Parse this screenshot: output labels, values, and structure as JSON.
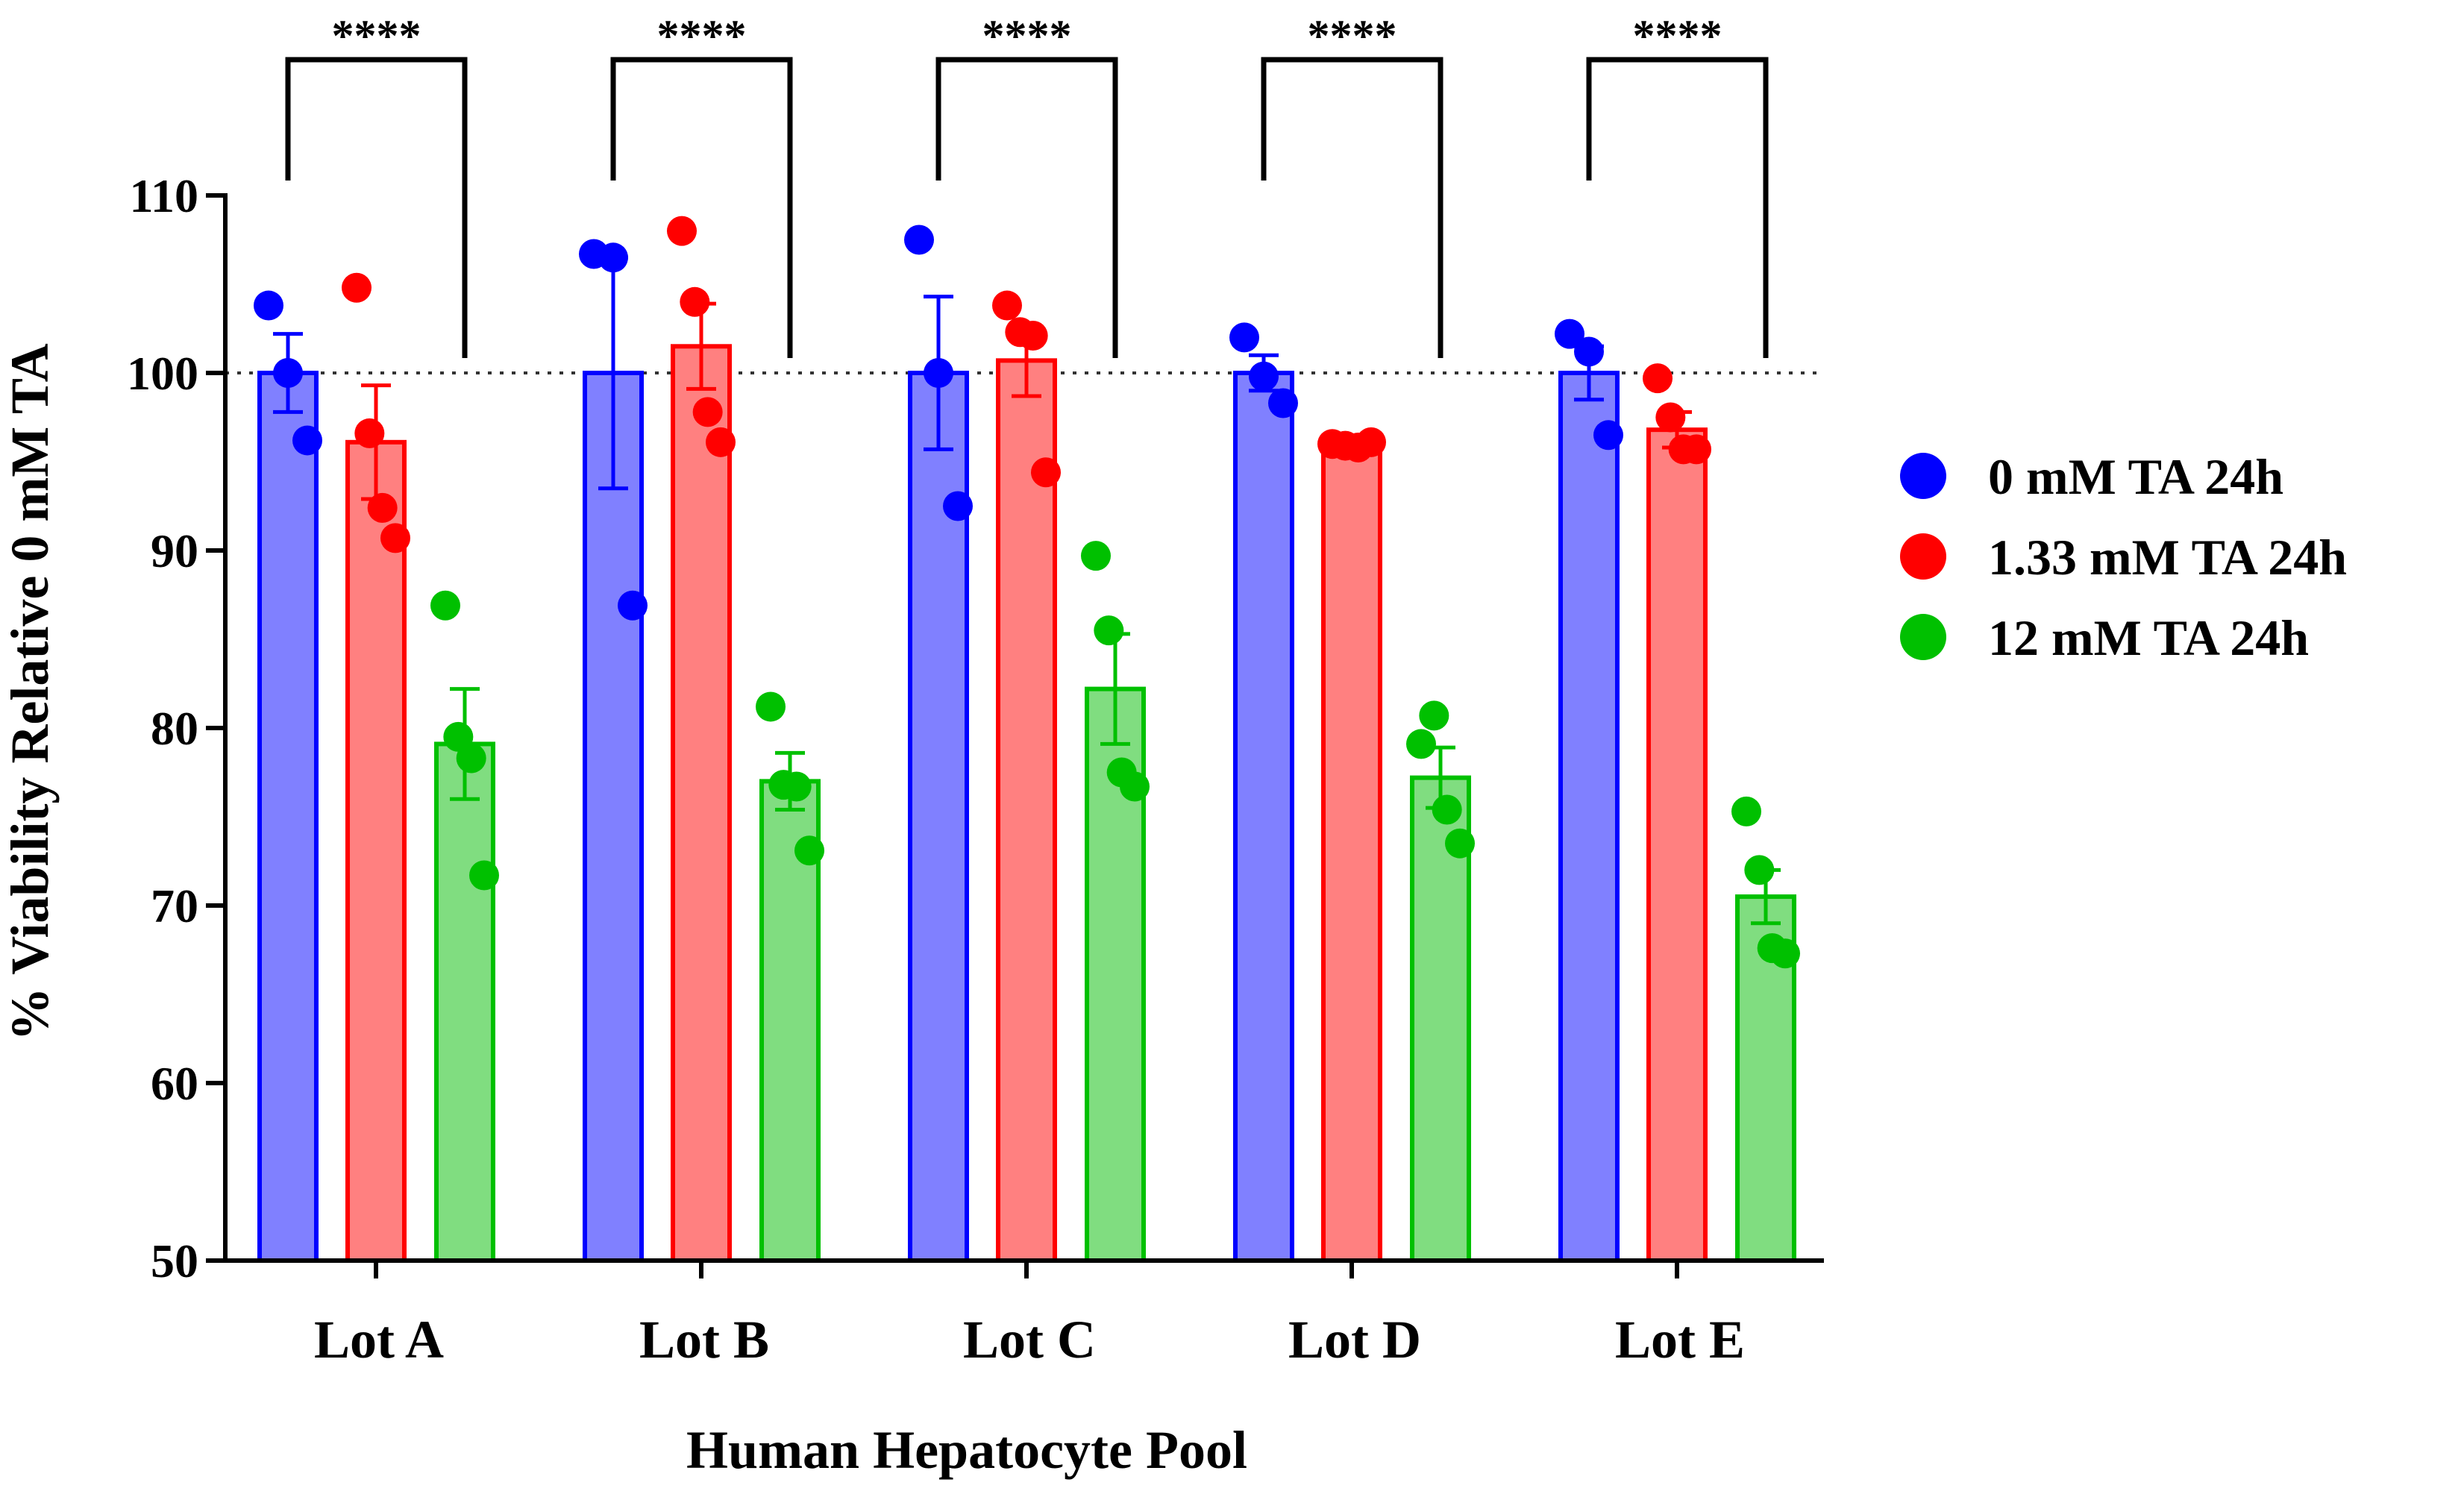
{
  "chart_data": {
    "type": "bar",
    "title": "",
    "xlabel": "Human Hepatocyte Pool",
    "ylabel": "% Viability Relative 0 mM TA",
    "ylim": [
      50,
      110
    ],
    "yticks": [
      50,
      60,
      70,
      80,
      90,
      100,
      110
    ],
    "reference_line": 100,
    "categories": [
      "Lot A",
      "Lot B",
      "Lot C",
      "Lot D",
      "Lot E"
    ],
    "series": [
      {
        "name": "0 mM TA 24h",
        "color": "#0000FF",
        "fill": "#8080FF",
        "values": [
          100,
          100,
          100,
          100,
          100
        ],
        "errors": [
          2.2,
          6.5,
          4.3,
          1.0,
          1.5
        ],
        "points": [
          [
            103.8,
            100.0,
            96.2
          ],
          [
            106.7,
            106.5,
            86.9
          ],
          [
            107.5,
            100.0,
            92.5
          ],
          [
            102.0,
            99.8,
            98.3
          ],
          [
            102.2,
            101.2,
            96.5
          ]
        ]
      },
      {
        "name": "1.33 mM TA 24h",
        "color": "#FF0000",
        "fill": "#FF8080",
        "values": [
          96.1,
          101.5,
          100.7,
          95.9,
          96.8
        ],
        "errors": [
          3.2,
          2.4,
          2.0,
          0.3,
          1.0
        ],
        "points": [
          [
            104.8,
            96.6,
            92.4,
            90.7
          ],
          [
            108.0,
            104.0,
            97.8,
            96.1
          ],
          [
            103.8,
            102.3,
            102.1,
            94.4
          ],
          [
            96.0,
            95.9,
            95.8,
            96.1
          ],
          [
            99.7,
            97.5,
            95.7,
            95.7
          ]
        ]
      },
      {
        "name": "12 mM TA 24h",
        "color": "#00C000",
        "fill": "#80DD80",
        "values": [
          79.1,
          77.0,
          82.2,
          77.2,
          70.5
        ],
        "errors": [
          3.1,
          1.6,
          3.1,
          1.7,
          1.5
        ],
        "points": [
          [
            86.9,
            79.5,
            78.3,
            71.7
          ],
          [
            81.2,
            76.8,
            76.7,
            73.1
          ],
          [
            89.7,
            85.5,
            77.5,
            76.7
          ],
          [
            79.1,
            80.7,
            75.4,
            73.5
          ],
          [
            75.3,
            72.0,
            67.6,
            67.3
          ]
        ]
      }
    ],
    "significance": [
      {
        "category": "Lot A",
        "label": "****"
      },
      {
        "category": "Lot B",
        "label": "****"
      },
      {
        "category": "Lot C",
        "label": "****"
      },
      {
        "category": "Lot D",
        "label": "****"
      },
      {
        "category": "Lot E",
        "label": "****"
      }
    ],
    "legend_position": "right"
  }
}
